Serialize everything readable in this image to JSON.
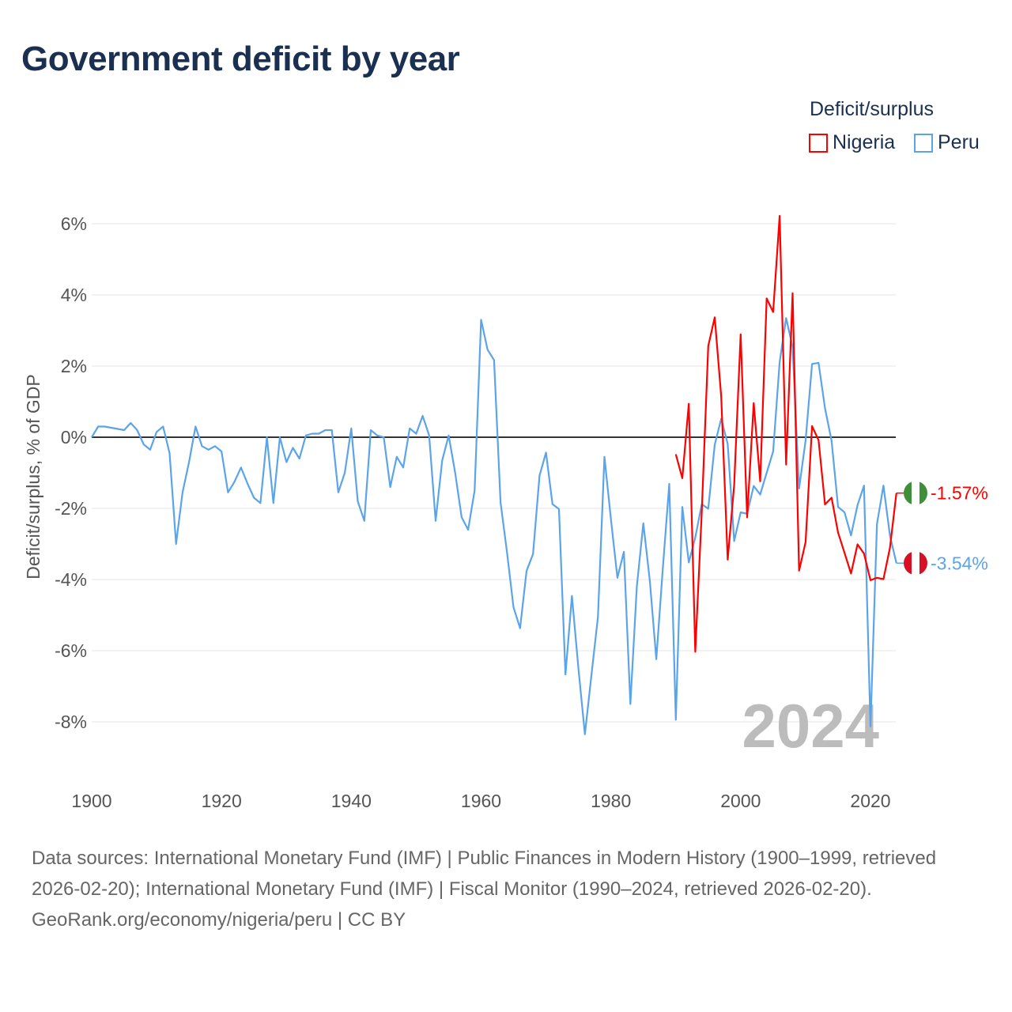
{
  "title": "Government deficit by year",
  "legend": {
    "title": "Deficit/surplus",
    "items": [
      {
        "name": "Nigeria",
        "color": "#ff0000"
      },
      {
        "name": "Peru",
        "color": "#5ba4ea"
      }
    ]
  },
  "year_watermark": "2024",
  "end_labels": {
    "Nigeria": "-1.57%",
    "Peru": "-3.54%"
  },
  "footer": {
    "sources": "Data sources: International Monetary Fund (IMF) | Public Finances in Modern History (1900–1999, retrieved 2026-02-20); International Monetary Fund (IMF) | Fiscal Monitor (1990–2024, retrieved 2026-02-20).",
    "credit": "GeoRank.org/economy/nigeria/peru | CC BY"
  },
  "chart_data": {
    "type": "line",
    "title": "Government deficit by year",
    "xlabel": "",
    "ylabel": "Deficit/surplus, % of GDP",
    "xlim": [
      1900,
      2024
    ],
    "ylim": [
      -9,
      6.5
    ],
    "x_ticks": [
      1900,
      1920,
      1940,
      1960,
      1980,
      2000,
      2020
    ],
    "x_tick_labels": [
      "1900",
      "1920",
      "1940",
      "1960",
      "1980",
      "2000",
      "2020"
    ],
    "y_ticks": [
      6,
      4,
      2,
      0,
      -2,
      -4,
      -6,
      -8
    ],
    "y_tick_labels": [
      "6%",
      "4%",
      "2%",
      "0%",
      "-2%",
      "-4%",
      "-6%",
      "-8%"
    ],
    "grid": true,
    "legend_position": "top-right",
    "series": [
      {
        "name": "Peru",
        "color": "#5ba4ea",
        "points": [
          [
            1900,
            0
          ],
          [
            1901,
            0.3
          ],
          [
            1902,
            0.3
          ],
          [
            1905,
            0.2
          ],
          [
            1906,
            0.4
          ],
          [
            1907,
            0.2
          ],
          [
            1908,
            -0.2
          ],
          [
            1909,
            -0.35
          ],
          [
            1910,
            0.15
          ],
          [
            1911,
            0.3
          ],
          [
            1912,
            -0.45
          ],
          [
            1913,
            -3.0
          ],
          [
            1914,
            -1.55
          ],
          [
            1915,
            -0.7
          ],
          [
            1916,
            0.3
          ],
          [
            1917,
            -0.25
          ],
          [
            1918,
            -0.35
          ],
          [
            1919,
            -0.25
          ],
          [
            1920,
            -0.4
          ],
          [
            1921,
            -1.55
          ],
          [
            1922,
            -1.25
          ],
          [
            1923,
            -0.85
          ],
          [
            1924,
            -1.3
          ],
          [
            1925,
            -1.7
          ],
          [
            1926,
            -1.85
          ],
          [
            1927,
            0
          ],
          [
            1928,
            -1.85
          ],
          [
            1929,
            0
          ],
          [
            1930,
            -0.7
          ],
          [
            1931,
            -0.3
          ],
          [
            1932,
            -0.6
          ],
          [
            1933,
            0.05
          ],
          [
            1934,
            0.1
          ],
          [
            1935,
            0.1
          ],
          [
            1936,
            0.2
          ],
          [
            1937,
            0.2
          ],
          [
            1938,
            -1.55
          ],
          [
            1939,
            -1.0
          ],
          [
            1940,
            0.25
          ],
          [
            1941,
            -1.8
          ],
          [
            1942,
            -2.35
          ],
          [
            1943,
            0.2
          ],
          [
            1944,
            0.05
          ],
          [
            1945,
            0
          ],
          [
            1946,
            -1.4
          ],
          [
            1947,
            -0.55
          ],
          [
            1948,
            -0.85
          ],
          [
            1949,
            0.25
          ],
          [
            1950,
            0.1
          ],
          [
            1951,
            0.6
          ],
          [
            1952,
            0.05
          ],
          [
            1953,
            -2.35
          ],
          [
            1954,
            -0.65
          ],
          [
            1955,
            0.05
          ],
          [
            1956,
            -1.0
          ],
          [
            1957,
            -2.25
          ],
          [
            1958,
            -2.6
          ],
          [
            1959,
            -1.5
          ],
          [
            1960,
            3.3
          ],
          [
            1961,
            2.46
          ],
          [
            1962,
            2.17
          ],
          [
            1963,
            -1.83
          ],
          [
            1964,
            -3.24
          ],
          [
            1965,
            -4.78
          ],
          [
            1966,
            -5.37
          ],
          [
            1967,
            -3.76
          ],
          [
            1968,
            -3.28
          ],
          [
            1969,
            -1.08
          ],
          [
            1970,
            -0.43
          ],
          [
            1971,
            -1.88
          ],
          [
            1972,
            -2.02
          ],
          [
            1973,
            -6.67
          ],
          [
            1974,
            -4.46
          ],
          [
            1975,
            -6.5
          ],
          [
            1976,
            -8.35
          ],
          [
            1977,
            -6.7
          ],
          [
            1978,
            -5.05
          ],
          [
            1979,
            -0.55
          ],
          [
            1980,
            -2.3
          ],
          [
            1981,
            -3.95
          ],
          [
            1982,
            -3.22
          ],
          [
            1983,
            -7.5
          ],
          [
            1984,
            -4.19
          ],
          [
            1985,
            -2.42
          ],
          [
            1986,
            -4.03
          ],
          [
            1987,
            -6.24
          ],
          [
            1988,
            -3.7
          ],
          [
            1989,
            -1.31
          ],
          [
            1990,
            -7.94
          ],
          [
            1991,
            -1.96
          ],
          [
            1992,
            -3.52
          ],
          [
            1993,
            -2.82
          ],
          [
            1994,
            -1.88
          ],
          [
            1995,
            -2.01
          ],
          [
            1996,
            -0.21
          ],
          [
            1997,
            0.52
          ],
          [
            1998,
            -0.19
          ],
          [
            1999,
            -2.92
          ],
          [
            2000,
            -2.11
          ],
          [
            2001,
            -2.15
          ],
          [
            2002,
            -1.37
          ],
          [
            2003,
            -1.61
          ],
          [
            2004,
            -1.0
          ],
          [
            2005,
            -0.4
          ],
          [
            2006,
            2.11
          ],
          [
            2007,
            3.35
          ],
          [
            2008,
            2.54
          ],
          [
            2009,
            -1.44
          ],
          [
            2010,
            -0.1
          ],
          [
            2011,
            2.06
          ],
          [
            2012,
            2.09
          ],
          [
            2013,
            0.81
          ],
          [
            2014,
            -0.1
          ],
          [
            2015,
            -1.96
          ],
          [
            2016,
            -2.11
          ],
          [
            2017,
            -2.76
          ],
          [
            2018,
            -1.91
          ],
          [
            2019,
            -1.36
          ],
          [
            2020,
            -8.13
          ],
          [
            2021,
            -2.44
          ],
          [
            2022,
            -1.36
          ],
          [
            2023,
            -2.76
          ],
          [
            2024,
            -3.54
          ]
        ]
      },
      {
        "name": "Nigeria",
        "color": "#ff0000",
        "points": [
          [
            1990,
            -0.48
          ],
          [
            1991,
            -1.15
          ],
          [
            1992,
            0.94
          ],
          [
            1993,
            -6.03
          ],
          [
            1994,
            -2.1
          ],
          [
            1995,
            2.56
          ],
          [
            1996,
            3.37
          ],
          [
            1997,
            1.15
          ],
          [
            1998,
            -3.44
          ],
          [
            1999,
            -1.34
          ],
          [
            2000,
            2.89
          ],
          [
            2001,
            -2.25
          ],
          [
            2002,
            0.96
          ],
          [
            2003,
            -1.24
          ],
          [
            2004,
            3.9
          ],
          [
            2005,
            3.52
          ],
          [
            2006,
            6.22
          ],
          [
            2007,
            -0.77
          ],
          [
            2008,
            4.05
          ],
          [
            2009,
            -3.75
          ],
          [
            2010,
            -2.95
          ],
          [
            2011,
            0.31
          ],
          [
            2012,
            -0.08
          ],
          [
            2013,
            -1.89
          ],
          [
            2014,
            -1.7
          ],
          [
            2015,
            -2.68
          ],
          [
            2016,
            -3.25
          ],
          [
            2017,
            -3.83
          ],
          [
            2018,
            -3.01
          ],
          [
            2019,
            -3.27
          ],
          [
            2020,
            -4.02
          ],
          [
            2021,
            -3.95
          ],
          [
            2022,
            -3.99
          ],
          [
            2023,
            -3.11
          ],
          [
            2024,
            -1.57
          ]
        ]
      }
    ]
  }
}
